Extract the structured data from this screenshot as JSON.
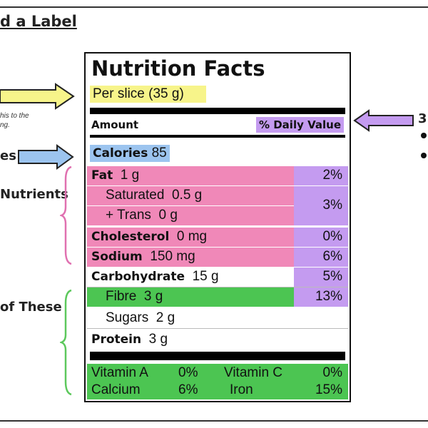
{
  "heading": "d a Label",
  "side_labels": {
    "note": "his to the\nng.",
    "calories": "es",
    "nutrients": "Nutrients",
    "these": "of These",
    "right_number": "3"
  },
  "colors": {
    "yellow": "#f7f48a",
    "blue": "#9cc4ef",
    "pink": "#f088b8",
    "purple": "#c49bf0",
    "green": "#4cc552"
  },
  "label": {
    "title": "Nutrition Facts",
    "serving": "Per slice (35 g)",
    "amount": "Amount",
    "daily_value": "% Daily Value",
    "calories_label": "Calories",
    "calories_value": "85",
    "rows": [
      {
        "name": "Fat",
        "amount": "1 g",
        "pct": "2%"
      },
      {
        "name": "Saturated",
        "amount": "0.5 g",
        "pct": "3%"
      },
      {
        "name": "+ Trans",
        "amount": "0 g"
      },
      {
        "name": "Cholesterol",
        "amount": "0 mg",
        "pct": "0%"
      },
      {
        "name": "Sodium",
        "amount": "150 mg",
        "pct": "6%"
      },
      {
        "name": "Carbohydrate",
        "amount": "15 g",
        "pct": "5%"
      },
      {
        "name": "Fibre",
        "amount": "3 g",
        "pct": "13%"
      },
      {
        "name": "Sugars",
        "amount": "2 g"
      },
      {
        "name": "Protein",
        "amount": "3 g"
      }
    ],
    "vitamins": [
      {
        "name": "Vitamin A",
        "pct": "0%"
      },
      {
        "name": "Vitamin C",
        "pct": "0%"
      },
      {
        "name": "Calcium",
        "pct": "6%"
      },
      {
        "name": "Iron",
        "pct": "15%"
      }
    ]
  }
}
